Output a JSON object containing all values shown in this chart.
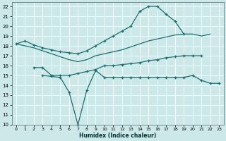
{
  "xlabel": "Humidex (Indice chaleur)",
  "xlim": [
    -0.5,
    23.5
  ],
  "ylim": [
    10,
    22.4
  ],
  "yticks": [
    10,
    11,
    12,
    13,
    14,
    15,
    16,
    17,
    18,
    19,
    20,
    21,
    22
  ],
  "xticks": [
    0,
    1,
    2,
    3,
    4,
    5,
    6,
    7,
    8,
    9,
    10,
    11,
    12,
    13,
    14,
    15,
    16,
    17,
    18,
    19,
    20,
    21,
    22,
    23
  ],
  "bg_color": "#cce8e8",
  "grid_color": "#ffffff",
  "line_color": "#1a7070",
  "line1_x": [
    0,
    1,
    2,
    3,
    4,
    5,
    6,
    7,
    8,
    9,
    10,
    11,
    12,
    13,
    14,
    15,
    16,
    17,
    18,
    19
  ],
  "line1_y": [
    18.2,
    18.5,
    18.1,
    17.8,
    17.6,
    17.4,
    17.3,
    17.2,
    17.5,
    18.0,
    18.5,
    19.0,
    19.5,
    20.0,
    21.5,
    22.0,
    22.0,
    21.2,
    20.5,
    19.2
  ],
  "line2_x": [
    0,
    1,
    2,
    3,
    4,
    5,
    6,
    7,
    8,
    9,
    10,
    11,
    12,
    13,
    14,
    15,
    16,
    17,
    18,
    19,
    20,
    21,
    22
  ],
  "line2_y": [
    18.2,
    18.0,
    17.8,
    17.5,
    17.2,
    16.9,
    16.6,
    16.4,
    16.6,
    17.0,
    17.2,
    17.4,
    17.6,
    17.9,
    18.2,
    18.5,
    18.7,
    18.9,
    19.1,
    19.2,
    19.2,
    19.0,
    19.2
  ],
  "line3_x": [
    2,
    3,
    4,
    5,
    6,
    7,
    8,
    9,
    10,
    11,
    12,
    13,
    14,
    15,
    16,
    17,
    18,
    19,
    20,
    21
  ],
  "line3_y": [
    15.8,
    15.8,
    15.0,
    15.0,
    15.0,
    15.2,
    15.4,
    15.6,
    16.0,
    16.0,
    16.1,
    16.2,
    16.3,
    16.5,
    16.6,
    16.8,
    16.9,
    17.0,
    17.0,
    17.0
  ],
  "line4_x": [
    3,
    4,
    5,
    6,
    7,
    8,
    9,
    10,
    11,
    12,
    13,
    14,
    15,
    16,
    17,
    18,
    19,
    20,
    21,
    22,
    23
  ],
  "line4_y": [
    15.0,
    14.9,
    14.8,
    13.3,
    10.0,
    13.5,
    15.5,
    14.8,
    14.8,
    14.8,
    14.8,
    14.8,
    14.8,
    14.8,
    14.8,
    14.8,
    14.8,
    15.0,
    14.5,
    14.2,
    14.2
  ]
}
